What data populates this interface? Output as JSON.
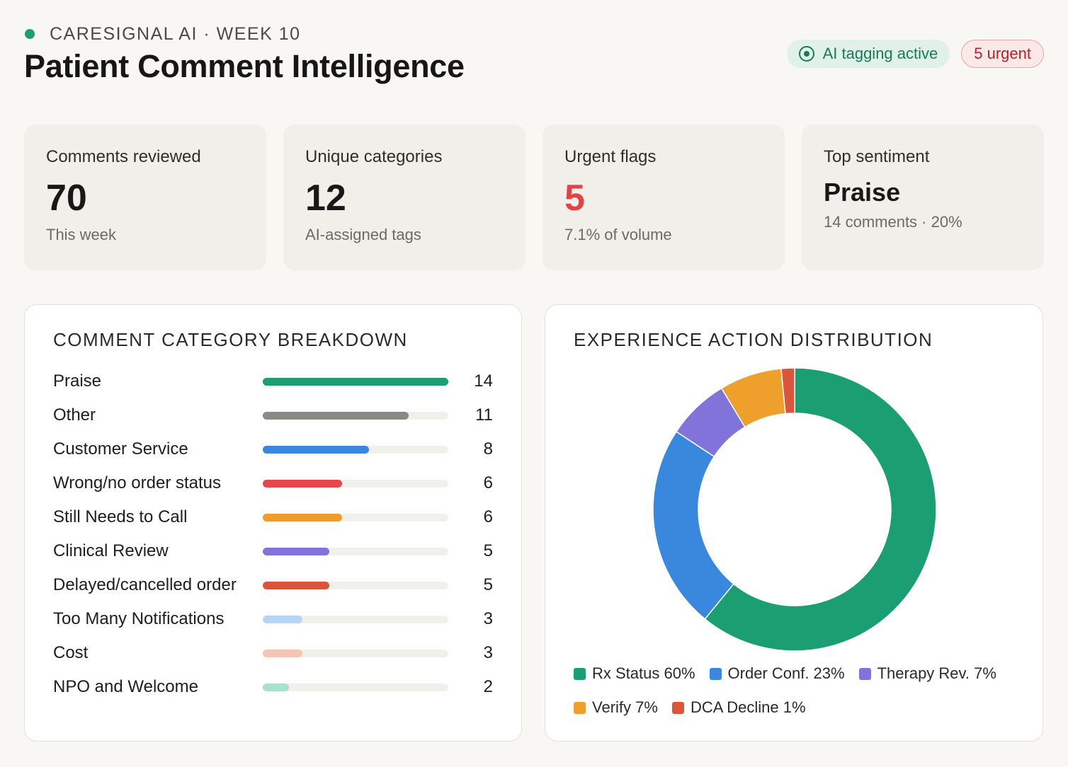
{
  "header": {
    "brand": "CARESIGNAL AI · WEEK 10",
    "title": "Patient Comment Intelligence",
    "badge_ai": "AI tagging active",
    "badge_urgent": "5 urgent"
  },
  "kpis": [
    {
      "label": "Comments reviewed",
      "value": "70",
      "sub": "This week"
    },
    {
      "label": "Unique categories",
      "value": "12",
      "sub": "AI-assigned tags"
    },
    {
      "label": "Urgent flags",
      "value": "5",
      "sub": "7.1% of volume"
    },
    {
      "label": "Top sentiment",
      "value": "Praise",
      "sub": "14 comments · 20%"
    }
  ],
  "colors": {
    "brand_green": "#1f9d72",
    "urgent_red": "#e04545"
  },
  "chart_data": [
    {
      "type": "bar",
      "orientation": "horizontal",
      "title": "COMMENT CATEGORY BREAKDOWN",
      "max": 14,
      "categories": [
        "Praise",
        "Other",
        "Customer Service",
        "Wrong/no order status",
        "Still Needs to Call",
        "Clinical Review",
        "Delayed/cancelled order",
        "Too Many Notifications",
        "Cost",
        "NPO and Welcome"
      ],
      "values": [
        14,
        11,
        8,
        6,
        6,
        5,
        5,
        3,
        3,
        2
      ],
      "value_labels": [
        "14",
        "11",
        "8",
        "6",
        "6",
        "5",
        "5",
        "3",
        "3",
        "2"
      ],
      "colors": [
        "#1a9e72",
        "#8a8a84",
        "#3a88de",
        "#e4484d",
        "#ed9d2c",
        "#8074da",
        "#d9553b",
        "#b6d4f3",
        "#f4c4b6",
        "#a6e2cd"
      ]
    },
    {
      "type": "pie",
      "donut": true,
      "title": "EXPERIENCE ACTION DISTRIBUTION",
      "labels": [
        "Rx Status",
        "Order Conf.",
        "Therapy Rev.",
        "Verify",
        "DCA Decline"
      ],
      "values": [
        60,
        23,
        7,
        7,
        1.5
      ],
      "legend_labels": [
        "Rx Status 60%",
        "Order Conf. 23%",
        "Therapy Rev. 7%",
        "Verify 7%",
        "DCA Decline 1%"
      ],
      "colors": [
        "#1a9e72",
        "#3a88de",
        "#8074da",
        "#ee9f2c",
        "#d9553b"
      ],
      "legend_position": "bottom"
    }
  ]
}
